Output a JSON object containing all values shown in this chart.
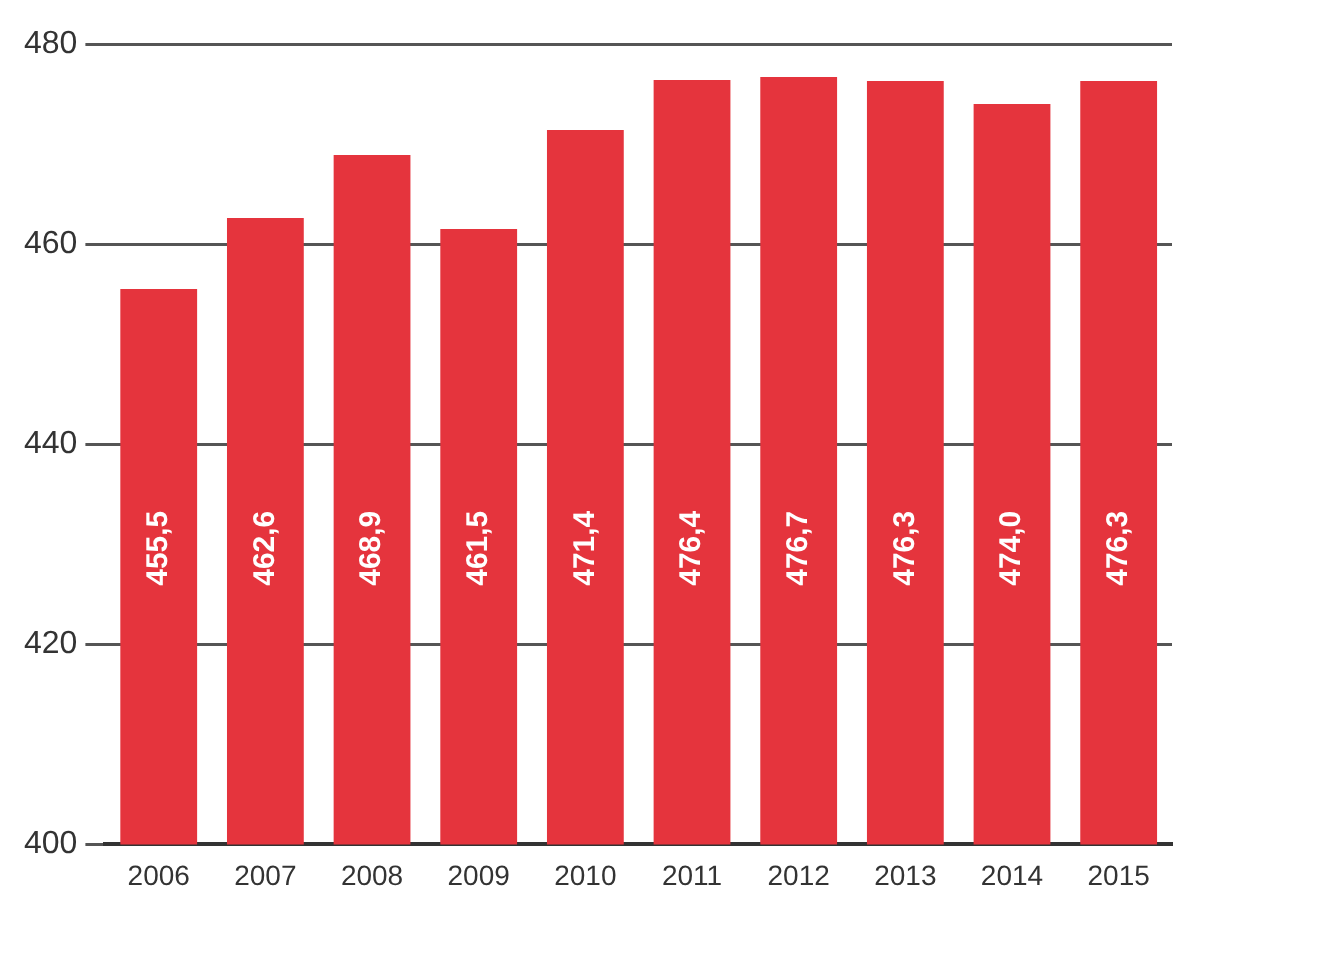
{
  "chart_data": {
    "type": "bar",
    "categories": [
      "2006",
      "2007",
      "2008",
      "2009",
      "2010",
      "2011",
      "2012",
      "2013",
      "2014",
      "2015"
    ],
    "values": [
      455.5,
      462.6,
      468.9,
      461.5,
      471.4,
      476.4,
      476.7,
      476.3,
      474.0,
      476.3
    ],
    "value_labels": [
      "455,5",
      "462,6",
      "468,9",
      "461,5",
      "471,4",
      "476,4",
      "476,7",
      "476,3",
      "474,0",
      "476,3"
    ],
    "color": "#e5343d",
    "ylim": [
      400,
      480
    ],
    "yticks": [
      400,
      420,
      440,
      460,
      480
    ],
    "grid": "y"
  }
}
